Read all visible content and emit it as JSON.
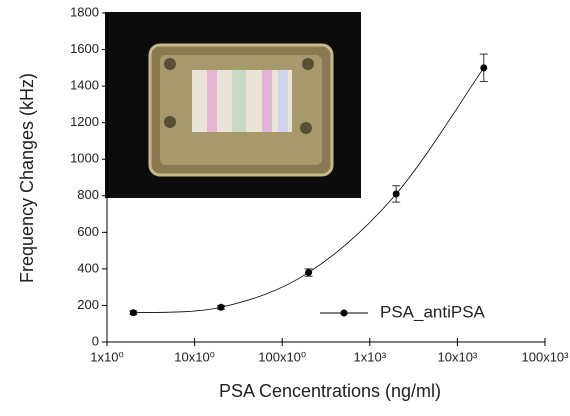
{
  "chart_data": {
    "type": "scatter",
    "x_label": "PSA Cencentrations (ng/ml)",
    "y_label": "Frequency Changes (kHz)",
    "x_scale": "log",
    "xlim": [
      1,
      100000
    ],
    "xticks": [
      {
        "value": 1,
        "label": "1x10⁰"
      },
      {
        "value": 10,
        "label": "10x10⁰"
      },
      {
        "value": 100,
        "label": "100x10⁰"
      },
      {
        "value": 1000,
        "label": "1x10³"
      },
      {
        "value": 10000,
        "label": "10x10³"
      },
      {
        "value": 100000,
        "label": "100x10³"
      }
    ],
    "ylim": [
      0,
      1800
    ],
    "yticks": [
      0,
      200,
      400,
      600,
      800,
      1000,
      1200,
      1400,
      1600,
      1800
    ],
    "legend": "lower right",
    "series": [
      {
        "name": "PSA_antiPSA",
        "color": "#000000",
        "x": [
          2,
          20,
          200,
          2000,
          20000
        ],
        "values": [
          160,
          190,
          380,
          810,
          1500
        ],
        "errors": [
          10,
          10,
          20,
          45,
          75
        ]
      }
    ]
  }
}
